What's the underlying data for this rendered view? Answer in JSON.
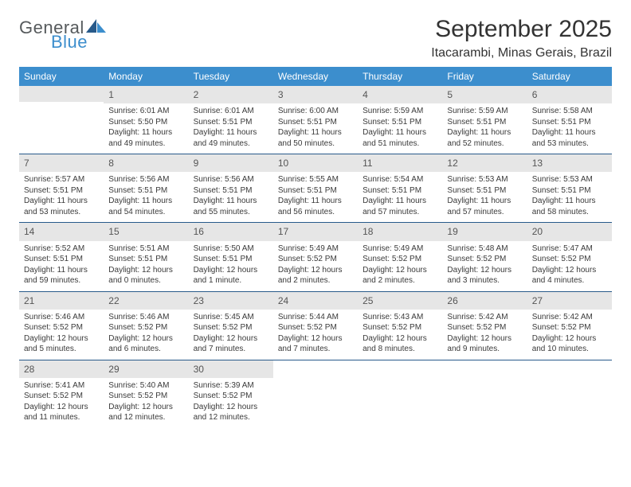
{
  "brand": {
    "line1": "General",
    "line2": "Blue"
  },
  "title": "September 2025",
  "location": "Itacarambi, Minas Gerais, Brazil",
  "colors": {
    "header_bg": "#3c8ecd",
    "header_text": "#ffffff",
    "row_divider": "#285a8a",
    "daynum_bg": "#e6e6e6",
    "text": "#3a3a3a",
    "brand_grey": "#565a5c",
    "brand_blue": "#3c8ecd"
  },
  "day_headers": [
    "Sunday",
    "Monday",
    "Tuesday",
    "Wednesday",
    "Thursday",
    "Friday",
    "Saturday"
  ],
  "weeks": [
    [
      null,
      {
        "n": "1",
        "sr": "6:01 AM",
        "ss": "5:50 PM",
        "dl": "11 hours and 49 minutes."
      },
      {
        "n": "2",
        "sr": "6:01 AM",
        "ss": "5:51 PM",
        "dl": "11 hours and 49 minutes."
      },
      {
        "n": "3",
        "sr": "6:00 AM",
        "ss": "5:51 PM",
        "dl": "11 hours and 50 minutes."
      },
      {
        "n": "4",
        "sr": "5:59 AM",
        "ss": "5:51 PM",
        "dl": "11 hours and 51 minutes."
      },
      {
        "n": "5",
        "sr": "5:59 AM",
        "ss": "5:51 PM",
        "dl": "11 hours and 52 minutes."
      },
      {
        "n": "6",
        "sr": "5:58 AM",
        "ss": "5:51 PM",
        "dl": "11 hours and 53 minutes."
      }
    ],
    [
      {
        "n": "7",
        "sr": "5:57 AM",
        "ss": "5:51 PM",
        "dl": "11 hours and 53 minutes."
      },
      {
        "n": "8",
        "sr": "5:56 AM",
        "ss": "5:51 PM",
        "dl": "11 hours and 54 minutes."
      },
      {
        "n": "9",
        "sr": "5:56 AM",
        "ss": "5:51 PM",
        "dl": "11 hours and 55 minutes."
      },
      {
        "n": "10",
        "sr": "5:55 AM",
        "ss": "5:51 PM",
        "dl": "11 hours and 56 minutes."
      },
      {
        "n": "11",
        "sr": "5:54 AM",
        "ss": "5:51 PM",
        "dl": "11 hours and 57 minutes."
      },
      {
        "n": "12",
        "sr": "5:53 AM",
        "ss": "5:51 PM",
        "dl": "11 hours and 57 minutes."
      },
      {
        "n": "13",
        "sr": "5:53 AM",
        "ss": "5:51 PM",
        "dl": "11 hours and 58 minutes."
      }
    ],
    [
      {
        "n": "14",
        "sr": "5:52 AM",
        "ss": "5:51 PM",
        "dl": "11 hours and 59 minutes."
      },
      {
        "n": "15",
        "sr": "5:51 AM",
        "ss": "5:51 PM",
        "dl": "12 hours and 0 minutes."
      },
      {
        "n": "16",
        "sr": "5:50 AM",
        "ss": "5:51 PM",
        "dl": "12 hours and 1 minute."
      },
      {
        "n": "17",
        "sr": "5:49 AM",
        "ss": "5:52 PM",
        "dl": "12 hours and 2 minutes."
      },
      {
        "n": "18",
        "sr": "5:49 AM",
        "ss": "5:52 PM",
        "dl": "12 hours and 2 minutes."
      },
      {
        "n": "19",
        "sr": "5:48 AM",
        "ss": "5:52 PM",
        "dl": "12 hours and 3 minutes."
      },
      {
        "n": "20",
        "sr": "5:47 AM",
        "ss": "5:52 PM",
        "dl": "12 hours and 4 minutes."
      }
    ],
    [
      {
        "n": "21",
        "sr": "5:46 AM",
        "ss": "5:52 PM",
        "dl": "12 hours and 5 minutes."
      },
      {
        "n": "22",
        "sr": "5:46 AM",
        "ss": "5:52 PM",
        "dl": "12 hours and 6 minutes."
      },
      {
        "n": "23",
        "sr": "5:45 AM",
        "ss": "5:52 PM",
        "dl": "12 hours and 7 minutes."
      },
      {
        "n": "24",
        "sr": "5:44 AM",
        "ss": "5:52 PM",
        "dl": "12 hours and 7 minutes."
      },
      {
        "n": "25",
        "sr": "5:43 AM",
        "ss": "5:52 PM",
        "dl": "12 hours and 8 minutes."
      },
      {
        "n": "26",
        "sr": "5:42 AM",
        "ss": "5:52 PM",
        "dl": "12 hours and 9 minutes."
      },
      {
        "n": "27",
        "sr": "5:42 AM",
        "ss": "5:52 PM",
        "dl": "12 hours and 10 minutes."
      }
    ],
    [
      {
        "n": "28",
        "sr": "5:41 AM",
        "ss": "5:52 PM",
        "dl": "12 hours and 11 minutes."
      },
      {
        "n": "29",
        "sr": "5:40 AM",
        "ss": "5:52 PM",
        "dl": "12 hours and 12 minutes."
      },
      {
        "n": "30",
        "sr": "5:39 AM",
        "ss": "5:52 PM",
        "dl": "12 hours and 12 minutes."
      },
      null,
      null,
      null,
      null
    ]
  ],
  "labels": {
    "sunrise": "Sunrise:",
    "sunset": "Sunset:",
    "daylight": "Daylight:"
  },
  "typography": {
    "title_size": 30,
    "location_size": 16,
    "th_size": 12,
    "cell_size": 10
  }
}
